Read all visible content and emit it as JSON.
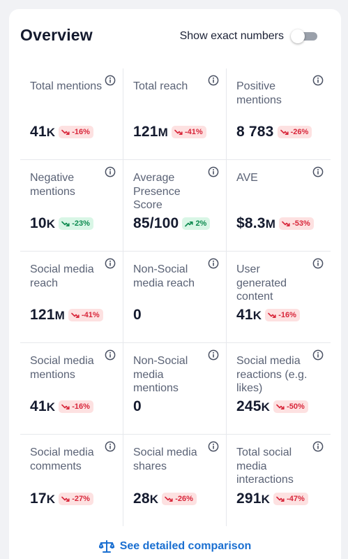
{
  "overview": {
    "title": "Overview",
    "toggle_label": "Show exact numbers",
    "toggle_on": false
  },
  "metrics": [
    {
      "label": "Total mentions",
      "value": "41",
      "unit": "K",
      "trend": "down",
      "change": "-16%"
    },
    {
      "label": "Total reach",
      "value": "121",
      "unit": "M",
      "trend": "down",
      "change": "-41%"
    },
    {
      "label": "Positive mentions",
      "value": "8 783",
      "unit": "",
      "trend": "down",
      "change": "-26%"
    },
    {
      "label": "Negative mentions",
      "value": "10",
      "unit": "K",
      "trend": "up-good",
      "change": "-23%"
    },
    {
      "label": "Average Presence Score",
      "value": "85/100",
      "unit": "",
      "trend": "up",
      "change": "2%"
    },
    {
      "label": "AVE",
      "value": "$8.3",
      "unit": "M",
      "trend": "down",
      "change": "-53%"
    },
    {
      "label": "Social media reach",
      "value": "121",
      "unit": "M",
      "trend": "down",
      "change": "-41%"
    },
    {
      "label": "Non-Social media reach",
      "value": "0",
      "unit": "",
      "trend": "none",
      "change": ""
    },
    {
      "label": "User generated content",
      "value": "41",
      "unit": "K",
      "trend": "down",
      "change": "-16%"
    },
    {
      "label": "Social media mentions",
      "value": "41",
      "unit": "K",
      "trend": "down",
      "change": "-16%"
    },
    {
      "label": "Non-Social media mentions",
      "value": "0",
      "unit": "",
      "trend": "none",
      "change": ""
    },
    {
      "label": "Social media reactions (e.g. likes)",
      "value": "245",
      "unit": "K",
      "trend": "down",
      "change": "-50%"
    },
    {
      "label": "Social media comments",
      "value": "17",
      "unit": "K",
      "trend": "down",
      "change": "-27%"
    },
    {
      "label": "Social media shares",
      "value": "28",
      "unit": "K",
      "trend": "down",
      "change": "-26%"
    },
    {
      "label": "Total social media interactions",
      "value": "291",
      "unit": "K",
      "trend": "down",
      "change": "-47%"
    }
  ],
  "footer": {
    "link_label": "See detailed comparison",
    "icon": "scale-icon"
  },
  "colors": {
    "accent": "#1a6fd1",
    "negative_bg": "#fde1e1",
    "negative_fg": "#d8263a",
    "positive_bg": "#d9f6e6",
    "positive_fg": "#0d8a4f"
  }
}
